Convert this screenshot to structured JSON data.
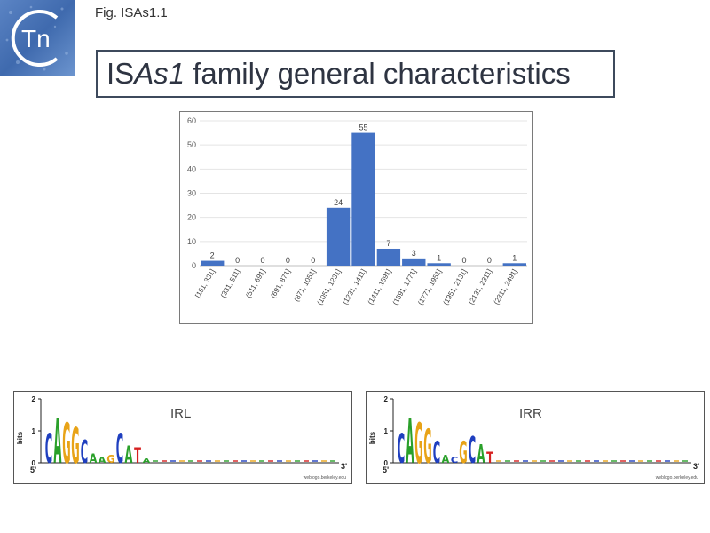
{
  "header": {
    "fig_label": "Fig. ISAs1.1",
    "title_prefix": "IS",
    "title_italic": "As1",
    "title_suffix": " family general characteristics",
    "logo_text": "Tn"
  },
  "chart_data": {
    "type": "bar",
    "categories": [
      "[151, 331]",
      "(331, 511]",
      "(511, 691]",
      "(691, 871]",
      "(871, 1051]",
      "(1051, 1231]",
      "(1231, 1411]",
      "(1411, 1591]",
      "(1591, 1771]",
      "(1771, 1951]",
      "(1951, 2131]",
      "(2131, 2311]",
      "(2311, 2491]"
    ],
    "values": [
      2,
      0,
      0,
      0,
      0,
      24,
      55,
      7,
      3,
      1,
      0,
      0,
      1
    ],
    "ylim": [
      0,
      60
    ],
    "yticks": [
      0,
      10,
      20,
      30,
      40,
      50,
      60
    ],
    "grid": true,
    "bar_color": "#4472c4",
    "title": "",
    "xlabel": "",
    "ylabel": ""
  },
  "sequence_logos": [
    {
      "label": "IRL",
      "y_axis_label": "bits",
      "y_ticks": [
        "2",
        "1",
        "0"
      ],
      "start_label": "5'",
      "end_label": "3'",
      "credit": "weblogo.berkeley.edu",
      "letters": [
        {
          "base": "C",
          "height": 0.95,
          "color": "#1f3fbf"
        },
        {
          "base": "A",
          "height": 1.45,
          "color": "#2aa02a"
        },
        {
          "base": "G",
          "height": 1.3,
          "color": "#e8a317"
        },
        {
          "base": "G",
          "height": 1.15,
          "color": "#e8a317"
        },
        {
          "base": "C",
          "height": 0.75,
          "color": "#1f3fbf"
        },
        {
          "base": "A",
          "height": 0.3,
          "color": "#2aa02a"
        },
        {
          "base": "A",
          "height": 0.2,
          "color": "#2aa02a"
        },
        {
          "base": "G",
          "height": 0.25,
          "color": "#e8a317"
        },
        {
          "base": "C",
          "height": 0.95,
          "color": "#1f3fbf"
        },
        {
          "base": "A",
          "height": 0.55,
          "color": "#2aa02a"
        },
        {
          "base": "T",
          "height": 0.5,
          "color": "#d62020"
        },
        {
          "base": "A",
          "height": 0.15,
          "color": "#2aa02a"
        }
      ]
    },
    {
      "label": "IRR",
      "y_axis_label": "bits",
      "y_ticks": [
        "2",
        "1",
        "0"
      ],
      "start_label": "5'",
      "end_label": "3'",
      "credit": "weblogo.berkeley.edu",
      "letters": [
        {
          "base": "C",
          "height": 0.95,
          "color": "#1f3fbf"
        },
        {
          "base": "A",
          "height": 1.45,
          "color": "#2aa02a"
        },
        {
          "base": "G",
          "height": 1.3,
          "color": "#e8a317"
        },
        {
          "base": "G",
          "height": 1.1,
          "color": "#e8a317"
        },
        {
          "base": "C",
          "height": 0.7,
          "color": "#1f3fbf"
        },
        {
          "base": "A",
          "height": 0.25,
          "color": "#2aa02a"
        },
        {
          "base": "C",
          "height": 0.2,
          "color": "#1f3fbf"
        },
        {
          "base": "G",
          "height": 0.7,
          "color": "#e8a317"
        },
        {
          "base": "C",
          "height": 0.85,
          "color": "#1f3fbf"
        },
        {
          "base": "A",
          "height": 0.6,
          "color": "#2aa02a"
        },
        {
          "base": "T",
          "height": 0.35,
          "color": "#d62020"
        }
      ]
    }
  ]
}
